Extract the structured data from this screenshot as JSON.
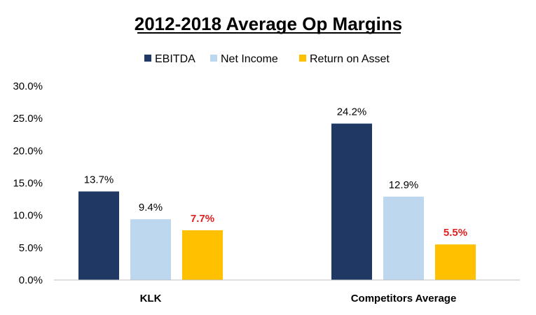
{
  "chart_data": {
    "type": "bar",
    "title": "2012-2018 Average Op Margins",
    "xlabel": "",
    "ylabel": "",
    "ylim": [
      0,
      30
    ],
    "yticks": [
      0,
      5,
      10,
      15,
      20,
      25,
      30
    ],
    "ytick_labels": [
      "0.0%",
      "5.0%",
      "10.0%",
      "15.0%",
      "20.0%",
      "25.0%",
      "30.0%"
    ],
    "grid": false,
    "legend_position": "top-center",
    "categories": [
      "KLK",
      "Competitors Average"
    ],
    "series": [
      {
        "name": "EBITDA",
        "color": "#203864",
        "values": [
          13.7,
          24.2
        ],
        "labels": [
          "13.7%",
          "24.2%"
        ],
        "label_color": "#000000",
        "label_bold": false
      },
      {
        "name": "Net Income",
        "color": "#BDD7EE",
        "values": [
          9.4,
          12.9
        ],
        "labels": [
          "9.4%",
          "12.9%"
        ],
        "label_color": "#000000",
        "label_bold": false
      },
      {
        "name": "Return on Asset",
        "color": "#FFC000",
        "values": [
          7.7,
          5.5
        ],
        "labels": [
          "7.7%",
          "5.5%"
        ],
        "label_color": "#E02020",
        "label_bold": true
      }
    ]
  }
}
